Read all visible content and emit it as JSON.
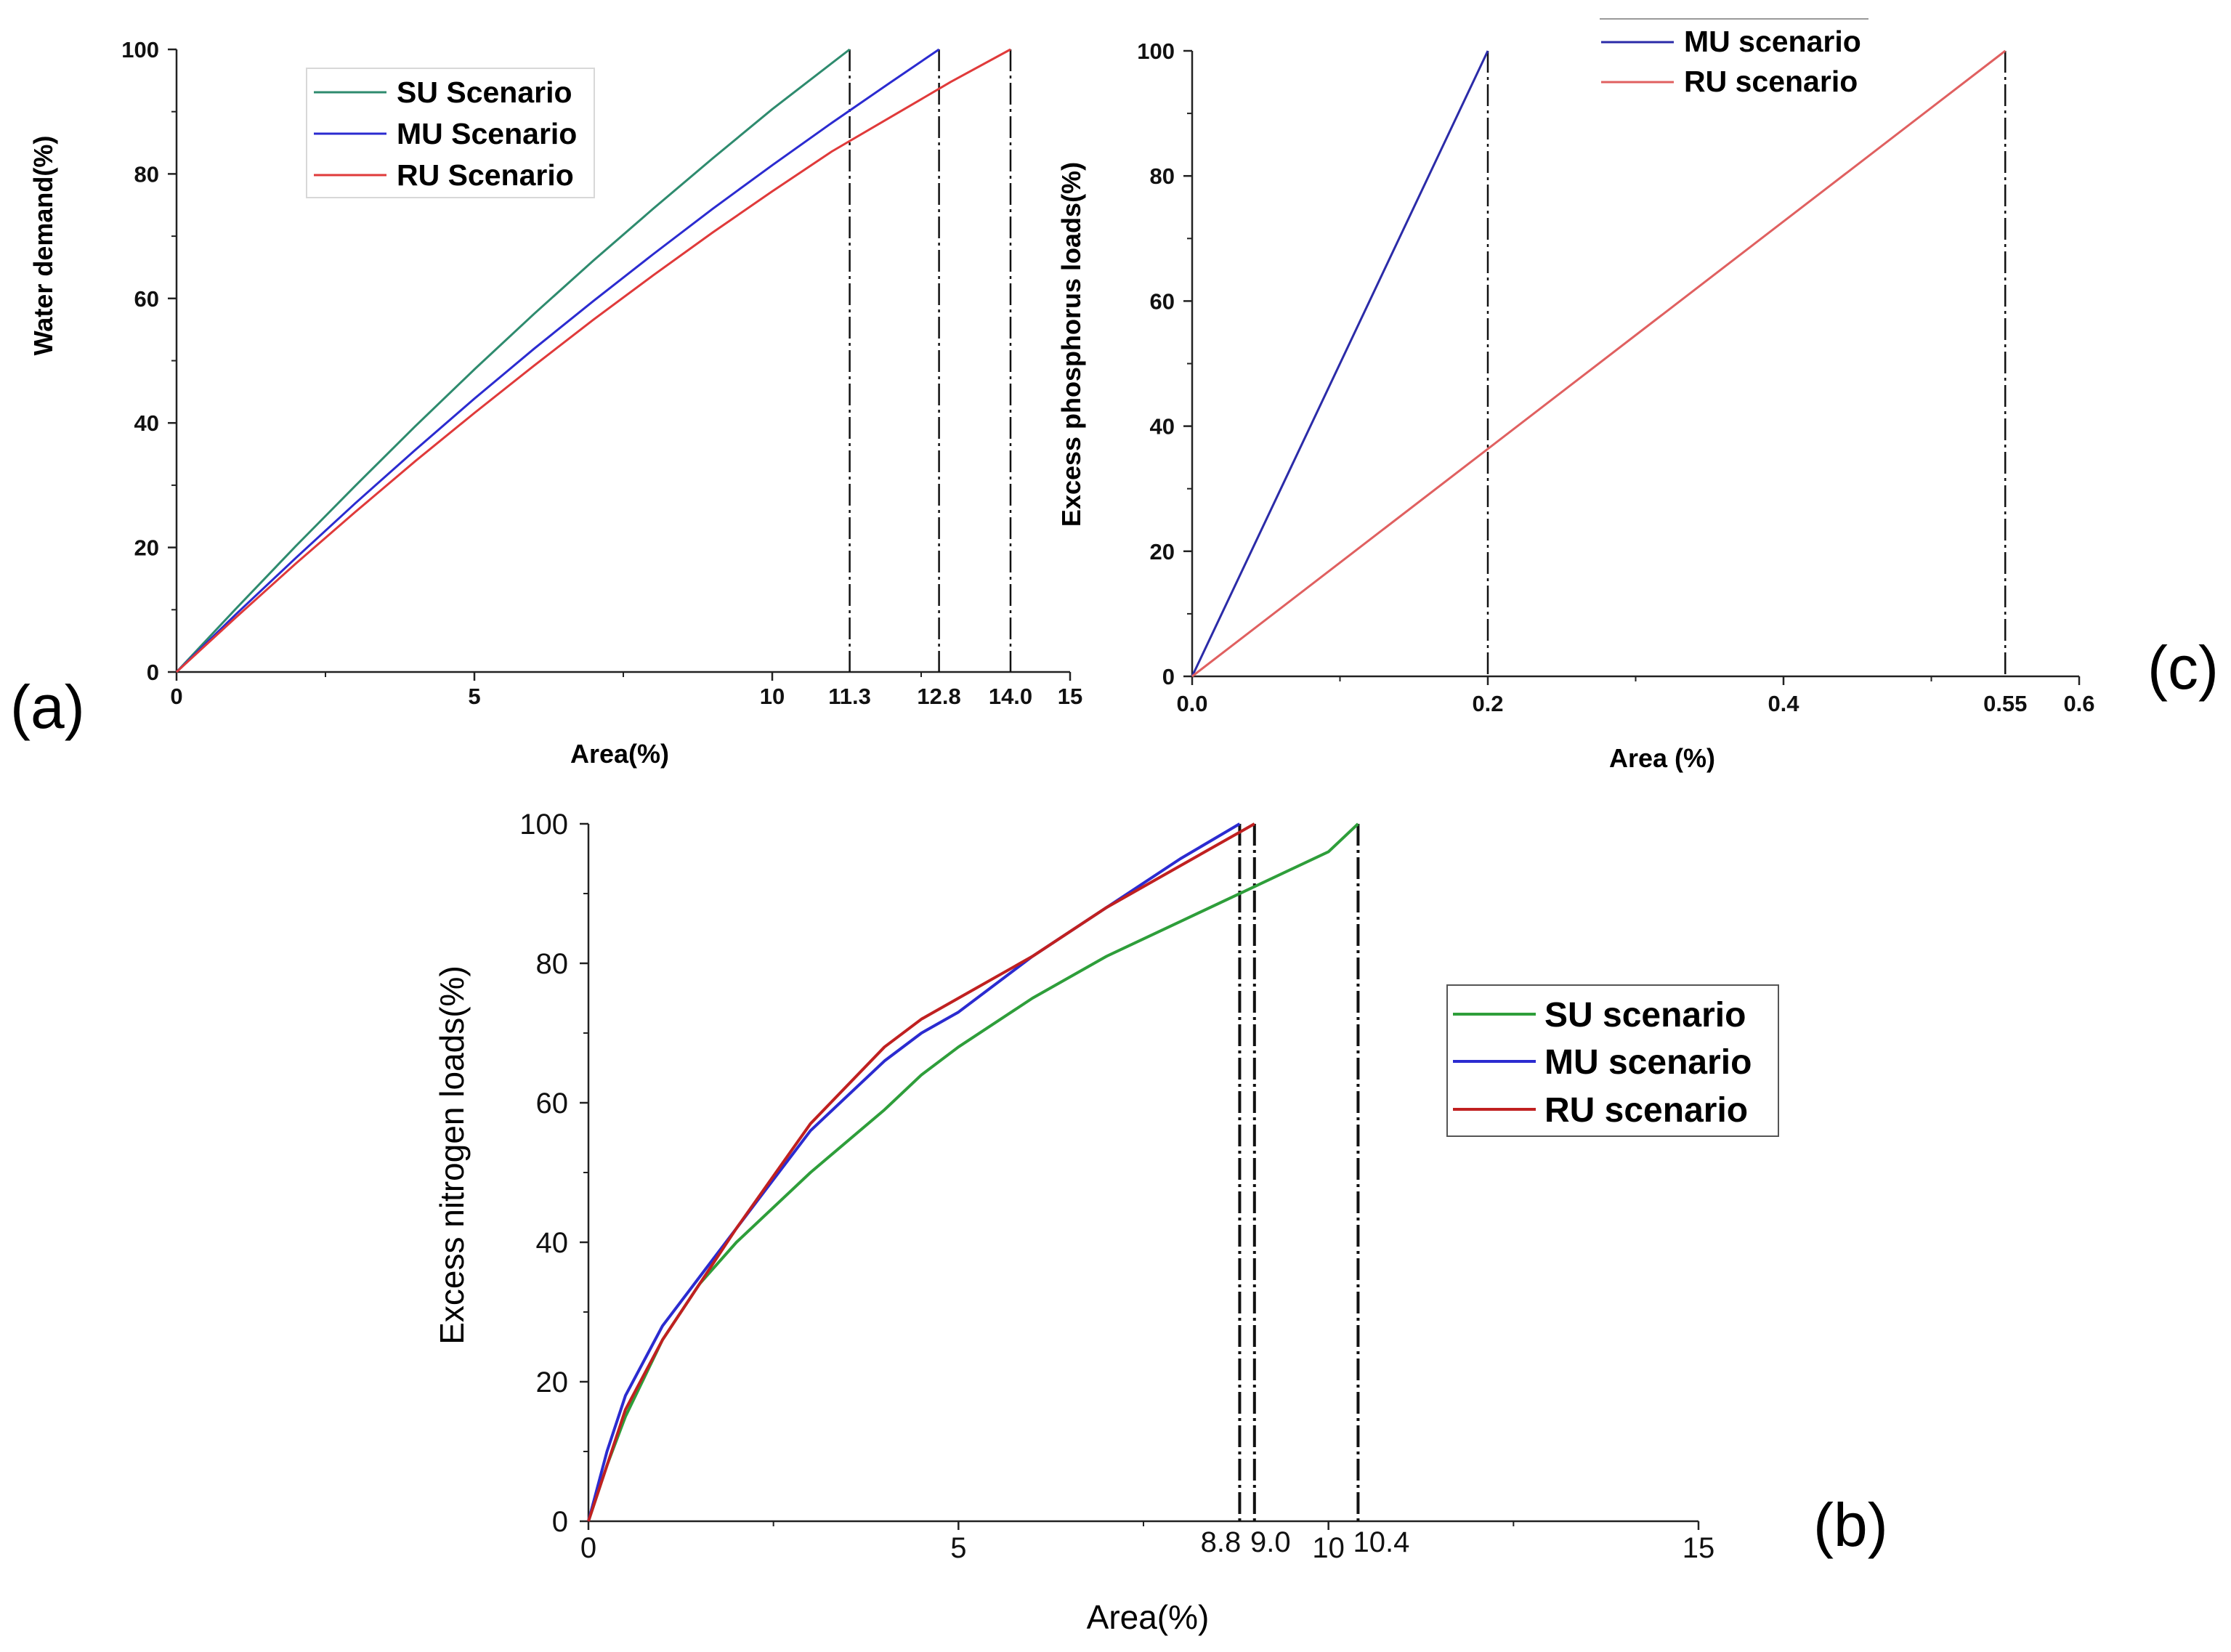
{
  "chart_data": [
    {
      "panel": "(a)",
      "type": "line",
      "title": "",
      "xlabel": "Area(%)",
      "ylabel": "Water demand(%)",
      "xlim": [
        0,
        15
      ],
      "ylim": [
        0,
        100
      ],
      "xticks": [
        0,
        5,
        10,
        15
      ],
      "xtick_labels": [
        "0",
        "5",
        "10",
        "15"
      ],
      "yticks": [
        0,
        20,
        40,
        60,
        80,
        100
      ],
      "ytick_labels": [
        "0",
        "20",
        "40",
        "60",
        "80",
        "100"
      ],
      "cutoff_labels": [
        "11.3",
        "12.8",
        "14.0"
      ],
      "legend_position": "top-left",
      "series": [
        {
          "name": "SU Scenario",
          "color": "#2e8b6e",
          "cutoff": 11.3,
          "x": [
            0,
            1,
            2,
            3,
            4,
            5,
            6,
            7,
            8,
            9,
            10,
            11.3
          ],
          "y": [
            0,
            10.2,
            20.2,
            29.9,
            39.4,
            48.6,
            57.5,
            66.1,
            74.4,
            82.5,
            90.4,
            100
          ]
        },
        {
          "name": "MU Scenario",
          "color": "#2b2bd0",
          "cutoff": 12.8,
          "x": [
            0,
            1,
            2,
            3,
            4,
            5,
            6,
            7,
            8,
            9,
            10,
            11,
            12,
            12.8
          ],
          "y": [
            0,
            9.3,
            18.3,
            27.1,
            35.6,
            43.9,
            51.9,
            59.6,
            67.1,
            74.4,
            81.4,
            88.2,
            94.8,
            100
          ]
        },
        {
          "name": "RU Scenario",
          "color": "#e03a3a",
          "cutoff": 14.0,
          "x": [
            0,
            1,
            2,
            3,
            4,
            5,
            6,
            7,
            8,
            9,
            10,
            11,
            12,
            13,
            14.0
          ],
          "y": [
            0,
            8.8,
            17.4,
            25.7,
            33.8,
            41.6,
            49.2,
            56.6,
            63.7,
            70.6,
            77.2,
            83.6,
            89.2,
            94.8,
            100
          ]
        }
      ]
    },
    {
      "panel": "(c)",
      "type": "line",
      "title": "",
      "xlabel": "Area (%)",
      "ylabel": "Excess phosphorus loads(%)",
      "xlim": [
        0,
        0.6
      ],
      "ylim": [
        0,
        100
      ],
      "xticks": [
        0,
        0.2,
        0.4,
        0.6
      ],
      "xtick_labels": [
        "0.0",
        "0.2",
        "0.4",
        "0.6"
      ],
      "yticks": [
        0,
        20,
        40,
        60,
        80,
        100
      ],
      "ytick_labels": [
        "0",
        "20",
        "40",
        "60",
        "80",
        "100"
      ],
      "cutoff_labels": [
        "0.55"
      ],
      "legend_position": "top-right",
      "series": [
        {
          "name": "MU scenario",
          "color": "#2b2ba8",
          "cutoff": 0.2,
          "x": [
            0,
            0.2
          ],
          "y": [
            0,
            100
          ]
        },
        {
          "name": "RU scenario",
          "color": "#e06060",
          "cutoff": 0.55,
          "x": [
            0,
            0.55
          ],
          "y": [
            0,
            100
          ]
        }
      ]
    },
    {
      "panel": "(b)",
      "type": "line",
      "title": "",
      "xlabel": "Area(%)",
      "ylabel": "Excess nitrogen loads(%)",
      "xlim": [
        0,
        15
      ],
      "ylim": [
        0,
        100
      ],
      "xticks": [
        0,
        5,
        10,
        15
      ],
      "xtick_labels": [
        "0",
        "5",
        "10",
        "15"
      ],
      "yticks": [
        0,
        20,
        40,
        60,
        80,
        100
      ],
      "ytick_labels": [
        "0",
        "20",
        "40",
        "60",
        "80",
        "100"
      ],
      "cutoff_labels": [
        "8.8",
        "9.0",
        "10.4"
      ],
      "legend_position": "right",
      "series": [
        {
          "name": "SU scenario",
          "color": "#2e9e3a",
          "cutoff": 10.4,
          "x": [
            0,
            0.25,
            0.5,
            1,
            1.5,
            2,
            3,
            4,
            4.5,
            5,
            6,
            7,
            8,
            9,
            10,
            10.4
          ],
          "y": [
            0,
            8,
            15,
            26,
            34,
            40,
            50,
            59,
            64,
            68,
            75,
            81,
            86,
            91,
            96,
            100
          ]
        },
        {
          "name": "MU scenario",
          "color": "#2b2bd0",
          "cutoff": 8.8,
          "x": [
            0,
            0.25,
            0.5,
            1,
            1.5,
            2,
            3,
            4,
            4.5,
            5,
            6,
            7,
            8,
            8.8
          ],
          "y": [
            0,
            10,
            18,
            28,
            35,
            42,
            56,
            66,
            70,
            73,
            81,
            88,
            95,
            100
          ]
        },
        {
          "name": "RU scenario",
          "color": "#c02020",
          "cutoff": 9.0,
          "x": [
            0,
            0.25,
            0.5,
            1,
            1.5,
            2,
            3,
            4,
            4.5,
            5,
            6,
            7,
            8,
            9.0
          ],
          "y": [
            0,
            8,
            16,
            26,
            34,
            42,
            57,
            68,
            72,
            75,
            81,
            88,
            94,
            100
          ]
        }
      ]
    }
  ]
}
